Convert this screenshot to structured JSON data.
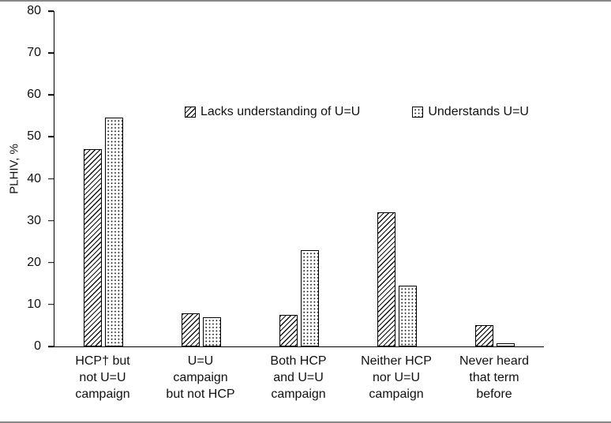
{
  "chart_data": {
    "type": "bar",
    "title": "",
    "xlabel": "",
    "ylabel": "PLHIV, %",
    "ylim": [
      0,
      80
    ],
    "ytick_step": 10,
    "grid": false,
    "legend_position": "inside-top-center",
    "categories": [
      "HCP† but\nnot U=U\ncampaign",
      "U=U\ncampaign\nbut not HCP",
      "Both HCP\nand U=U\ncampaign",
      "Neither HCP\nnor U=U\ncampaign",
      "Never heard\nthat term\nbefore"
    ],
    "series": [
      {
        "name": "Lacks understanding of U=U",
        "pattern": "diagonal-hatch",
        "values": [
          47,
          8,
          7.5,
          32,
          5
        ]
      },
      {
        "name": "Understands U=U",
        "pattern": "dots",
        "values": [
          54.5,
          7,
          23,
          14.5,
          0.7
        ]
      }
    ],
    "colors": {
      "bar_outline": "#000000",
      "background": "#ffffff"
    }
  }
}
